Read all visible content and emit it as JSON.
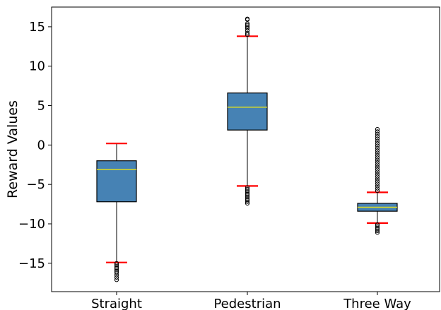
{
  "chart_data": {
    "type": "box",
    "title": "",
    "xlabel": "",
    "ylabel": "Reward Values",
    "ylim": [
      -18.6,
      17.5
    ],
    "yticks": [
      15,
      10,
      5,
      0,
      -5,
      -10,
      -15
    ],
    "ytick_labels": [
      "15",
      "10",
      "5",
      "0",
      "−5",
      "−10",
      "−15"
    ],
    "grid": false,
    "legend": "none",
    "colors": {
      "box_fill": "#4682b4",
      "box_edge": "#000000",
      "median": "#dddd22",
      "whisker": "#000000",
      "cap": "#ff0000",
      "outlier": "#000000"
    },
    "categories": [
      "Straight",
      "Pedestrian",
      "Three Way"
    ],
    "boxes": [
      {
        "label": "Straight",
        "whisker_low": -14.9,
        "q1": -7.2,
        "median": -3.1,
        "q3": -2.0,
        "whisker_high": 0.2,
        "outliers": [
          -15.0,
          -15.2,
          -15.4,
          -15.6,
          -15.8,
          -16.0,
          -16.2,
          -16.5,
          -16.8,
          -17.1
        ]
      },
      {
        "label": "Pedestrian",
        "whisker_low": -5.2,
        "q1": 1.9,
        "median": 4.8,
        "q3": 6.6,
        "whisker_high": 13.8,
        "outliers": [
          -5.4,
          -5.6,
          -5.8,
          -6.0,
          -6.2,
          -6.4,
          -6.6,
          -6.8,
          -7.0,
          -7.2,
          -7.4,
          14.0,
          14.2,
          14.5,
          14.8,
          15.0,
          15.2,
          15.4,
          15.9,
          16.0
        ]
      },
      {
        "label": "Three Way",
        "whisker_low": -9.9,
        "q1": -8.4,
        "median": -7.9,
        "q3": -7.4,
        "whisker_high": -6.0,
        "outliers": [
          -10.1,
          -10.3,
          -10.5,
          -10.7,
          -10.9,
          -11.1,
          -5.8,
          -5.5,
          -5.2,
          -4.9,
          -4.6,
          -4.3,
          -4.0,
          -3.7,
          -3.4,
          -3.1,
          -2.8,
          -2.5,
          -2.2,
          -1.9,
          -1.6,
          -1.3,
          -1.0,
          -0.7,
          -0.4,
          -0.1,
          0.2,
          0.5,
          0.8,
          1.1,
          1.4,
          1.7,
          2.0
        ]
      }
    ]
  }
}
